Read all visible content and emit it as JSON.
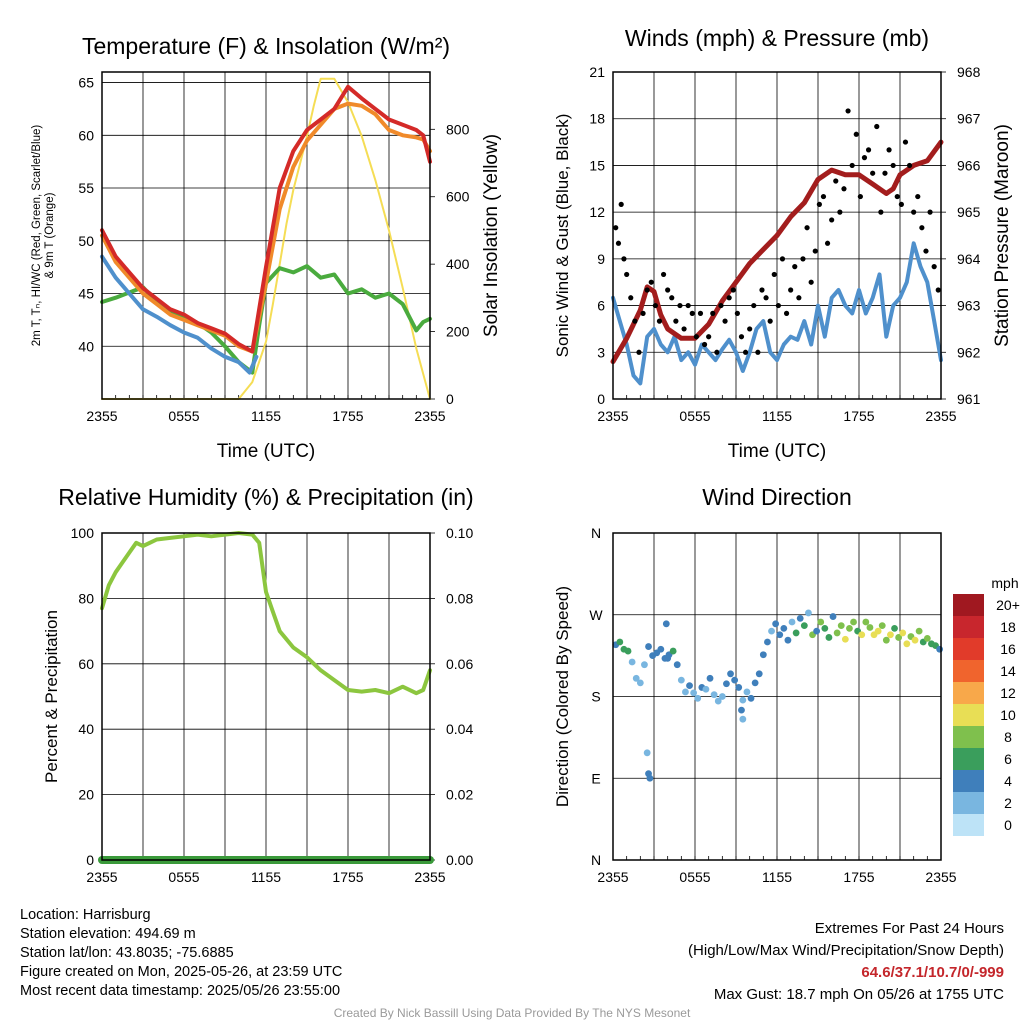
{
  "chart_data": [
    {
      "id": "temp",
      "type": "line",
      "title": "Temperature (F) & Insolation (W/m²)",
      "xlabel": "Time (UTC)",
      "ylabel_lines": [
        "2m T, Tₙ, HI/WC (Red, Green, Scarlet/Blue)",
        "& 9m T (Orange)"
      ],
      "y2label": "Solar Insolation (Yellow)",
      "x_ticks": [
        "2355",
        "0555",
        "1155",
        "1755",
        "2355"
      ],
      "ylim": [
        35,
        66
      ],
      "y_ticks": [
        40,
        45,
        50,
        55,
        60,
        65
      ],
      "y2lim": [
        0,
        970
      ],
      "y2_ticks": [
        0,
        200,
        400,
        600,
        800
      ],
      "grid": true,
      "series": [
        {
          "key": "insolation",
          "axis": "right",
          "color": "#f5dd55",
          "x": [
            0,
            0.5,
            1,
            2,
            3,
            4,
            5,
            6,
            7,
            8,
            9,
            10,
            11,
            12,
            12.5,
            13,
            13.5,
            14,
            14.5,
            15,
            15.5,
            16,
            17,
            18,
            19,
            20,
            21,
            22,
            23,
            24
          ],
          "y": [
            0,
            0,
            0,
            0,
            0,
            0,
            0,
            0,
            0,
            0,
            0,
            0,
            50,
            170,
            280,
            400,
            520,
            620,
            700,
            780,
            870,
            950,
            950,
            880,
            780,
            650,
            500,
            330,
            150,
            0
          ]
        },
        {
          "key": "dewpoint",
          "color": "#4aab3e",
          "x": [
            0,
            1,
            2,
            3,
            4,
            5,
            6,
            7,
            8,
            9,
            10,
            11,
            11.5,
            12,
            13,
            14,
            15,
            16,
            17,
            18,
            19,
            20,
            21,
            22,
            23,
            23.5,
            24
          ],
          "y": [
            44.2,
            44.6,
            45.1,
            45.6,
            44.2,
            43.3,
            42.8,
            42.2,
            41.3,
            40.0,
            38.5,
            37.5,
            42.0,
            46.0,
            47.4,
            47.0,
            47.6,
            46.5,
            46.8,
            45.0,
            45.4,
            44.6,
            45.0,
            44.0,
            41.5,
            42.3,
            42.6
          ]
        },
        {
          "key": "heat_index_wc",
          "color": "#4f90cc",
          "x": [
            0,
            1,
            2,
            3,
            4,
            5,
            6,
            7,
            8,
            9,
            10,
            10.8,
            11.3
          ],
          "y": [
            48.5,
            46.5,
            45.0,
            43.5,
            42.8,
            42.0,
            41.3,
            40.8,
            39.8,
            39.0,
            38.5,
            37.5,
            39.0
          ]
        },
        {
          "key": "temp_9m",
          "color": "#f08a2a",
          "x": [
            0,
            1,
            2,
            3,
            4,
            5,
            6,
            7,
            8,
            9,
            10,
            11,
            12,
            13,
            14,
            15,
            16,
            17,
            18,
            19,
            20,
            21,
            22,
            23,
            23.5,
            24
          ],
          "y": [
            50.5,
            48.0,
            46.5,
            45.0,
            44.0,
            43.0,
            42.5,
            42.0,
            41.5,
            41.0,
            40.0,
            39.5,
            46.0,
            53.0,
            57.0,
            59.5,
            61.0,
            62.5,
            63.0,
            62.8,
            62.0,
            60.5,
            60.0,
            59.8,
            59.6,
            58.5
          ]
        },
        {
          "key": "temp_2m",
          "color": "#d42a28",
          "x": [
            0,
            1,
            2,
            3,
            4,
            5,
            6,
            7,
            8,
            9,
            10,
            11,
            12,
            13,
            14,
            15,
            16,
            17,
            18,
            19,
            20,
            21,
            22,
            23,
            23.5,
            24
          ],
          "y": [
            51.0,
            48.5,
            47.0,
            45.5,
            44.5,
            43.5,
            43.0,
            42.2,
            41.7,
            41.2,
            40.2,
            39.5,
            47.5,
            55.0,
            58.5,
            60.5,
            61.5,
            62.5,
            64.6,
            63.5,
            62.5,
            61.5,
            61.0,
            60.5,
            60.0,
            57.5
          ]
        }
      ]
    },
    {
      "id": "winds",
      "type": "line",
      "title": "Winds (mph) & Pressure (mb)",
      "xlabel": "Time (UTC)",
      "ylabel": "Sonic Wind & Gust (Blue, Black)",
      "y2label": "Station Pressure (Maroon)",
      "x_ticks": [
        "2355",
        "0555",
        "1155",
        "1755",
        "2355"
      ],
      "ylim": [
        0,
        21
      ],
      "y_ticks": [
        0,
        3,
        6,
        9,
        12,
        15,
        18,
        21
      ],
      "y2lim": [
        961,
        968
      ],
      "y2_ticks": [
        961,
        962,
        963,
        964,
        965,
        966,
        967,
        968
      ],
      "grid": true,
      "series": [
        {
          "key": "wind",
          "color": "#4f90cc",
          "x": [
            0,
            0.5,
            1,
            1.5,
            2,
            2.5,
            3,
            3.5,
            4,
            4.5,
            5,
            5.5,
            6,
            6.5,
            7,
            7.5,
            8,
            8.5,
            9,
            9.5,
            10,
            10.5,
            11,
            11.5,
            12,
            12.5,
            13,
            13.5,
            14,
            14.5,
            15,
            15.5,
            16,
            16.5,
            17,
            17.5,
            18,
            18.5,
            19,
            19.5,
            20,
            20.5,
            21,
            21.5,
            22,
            22.5,
            23,
            23.5,
            24
          ],
          "y": [
            6.5,
            5.0,
            3.5,
            1.5,
            1.0,
            4.0,
            4.5,
            3.5,
            3.0,
            4.0,
            2.5,
            3.0,
            2.2,
            3.5,
            3.0,
            2.5,
            3.2,
            3.8,
            3.0,
            1.8,
            3.0,
            4.5,
            5.0,
            3.0,
            2.5,
            3.5,
            4.0,
            3.8,
            5.0,
            3.5,
            6.0,
            4.0,
            6.5,
            7.0,
            6.0,
            5.5,
            7.0,
            5.5,
            6.5,
            8.0,
            4.0,
            6.0,
            6.5,
            7.5,
            10.0,
            8.5,
            7.5,
            5.0,
            2.5
          ]
        },
        {
          "key": "pressure",
          "axis": "right",
          "color": "#a31d1d",
          "x": [
            0,
            1,
            2,
            2.5,
            3,
            3.5,
            4,
            5,
            6,
            7,
            8,
            9,
            10,
            11,
            12,
            13,
            14,
            15,
            16,
            17,
            18,
            19,
            20,
            20.5,
            21,
            22,
            23,
            24
          ],
          "y": [
            961.8,
            962.3,
            962.9,
            963.4,
            963.3,
            962.8,
            962.5,
            962.3,
            962.3,
            962.6,
            963.1,
            963.5,
            963.9,
            964.2,
            964.5,
            964.9,
            965.2,
            965.7,
            965.9,
            965.8,
            965.8,
            965.6,
            965.4,
            965.5,
            965.8,
            966.0,
            966.1,
            966.5
          ]
        }
      ],
      "gusts": {
        "color": "#000000",
        "x": [
          0.2,
          0.4,
          0.6,
          0.8,
          1.0,
          1.3,
          1.6,
          1.9,
          2.2,
          2.5,
          2.8,
          3.1,
          3.4,
          3.7,
          4.0,
          4.3,
          4.6,
          4.9,
          5.2,
          5.5,
          5.8,
          6.1,
          6.4,
          6.7,
          7.0,
          7.3,
          7.6,
          7.9,
          8.2,
          8.5,
          8.8,
          9.1,
          9.4,
          9.7,
          10.0,
          10.3,
          10.6,
          10.9,
          11.2,
          11.5,
          11.8,
          12.1,
          12.4,
          12.7,
          13.0,
          13.3,
          13.6,
          13.9,
          14.2,
          14.5,
          14.8,
          15.1,
          15.4,
          15.7,
          16.0,
          16.3,
          16.6,
          16.9,
          17.2,
          17.5,
          17.8,
          18.1,
          18.4,
          18.7,
          19.0,
          19.3,
          19.6,
          19.9,
          20.2,
          20.5,
          20.8,
          21.1,
          21.4,
          21.7,
          22.0,
          22.3,
          22.6,
          22.9,
          23.2,
          23.5,
          23.8
        ],
        "y": [
          11.0,
          10.0,
          12.5,
          9.0,
          8.0,
          6.5,
          5.0,
          3.0,
          5.5,
          7.0,
          7.5,
          6.0,
          5.0,
          8.0,
          7.0,
          6.5,
          5.0,
          6.0,
          4.5,
          6.0,
          5.5,
          4.0,
          5.5,
          3.5,
          4.0,
          5.5,
          3.0,
          6.0,
          5.0,
          6.5,
          7.0,
          5.5,
          4.0,
          3.0,
          4.5,
          6.0,
          3.0,
          7.0,
          6.5,
          5.0,
          8.0,
          6.0,
          9.0,
          5.5,
          7.0,
          8.5,
          6.5,
          9.0,
          11.0,
          7.5,
          9.5,
          12.5,
          13.0,
          10.0,
          11.5,
          14.0,
          12.0,
          13.5,
          18.5,
          15.0,
          17.0,
          13.0,
          15.5,
          16.0,
          14.5,
          17.5,
          12.0,
          14.5,
          16.0,
          15.0,
          13.0,
          12.5,
          16.5,
          15.0,
          12.0,
          13.0,
          11.0,
          9.5,
          12.0,
          8.5,
          7.0
        ]
      }
    },
    {
      "id": "rh",
      "type": "line",
      "title": "Relative Humidity (%) & Precipitation (in)",
      "xlabel": "",
      "ylabel": "Percent & Precipitation",
      "x_ticks": [
        "2355",
        "0555",
        "1155",
        "1755",
        "2355"
      ],
      "ylim": [
        0,
        100
      ],
      "y_ticks": [
        0,
        20,
        40,
        60,
        80,
        100
      ],
      "y2lim": [
        0,
        0.1
      ],
      "y2_ticks": [
        "0.00",
        "0.02",
        "0.04",
        "0.06",
        "0.08",
        "0.10"
      ],
      "grid": true,
      "series": [
        {
          "key": "precip",
          "axis": "right",
          "color": "#3a9a3a",
          "x": [
            0,
            24
          ],
          "y": [
            0,
            0
          ]
        },
        {
          "key": "rh",
          "color": "#8cc63f",
          "x": [
            0,
            0.5,
            1,
            1.5,
            2,
            2.5,
            3,
            3.5,
            4,
            5,
            6,
            7,
            8,
            9,
            10,
            11,
            11.5,
            12,
            12.5,
            13,
            14,
            15,
            16,
            17,
            18,
            19,
            20,
            21,
            22,
            23,
            23.5,
            24
          ],
          "y": [
            77,
            84,
            88,
            91,
            94,
            97,
            96,
            97,
            98,
            98.5,
            99,
            99.5,
            99,
            99.5,
            100,
            99.5,
            97,
            82,
            76,
            70,
            65,
            62,
            58,
            55,
            52,
            51.5,
            52,
            51,
            53,
            51,
            52,
            58
          ]
        }
      ]
    },
    {
      "id": "wdir",
      "type": "scatter",
      "title": "Wind Direction",
      "xlabel": "",
      "ylabel": "Direction (Colored By Speed)",
      "x_ticks": [
        "2355",
        "0555",
        "1155",
        "1755",
        "2355"
      ],
      "y_ticks": [
        "N",
        "E",
        "S",
        "W",
        "N"
      ],
      "ylim": [
        0,
        360
      ],
      "grid": true,
      "legend": {
        "title": "mph",
        "labels": [
          "20+",
          "18",
          "16",
          "14",
          "12",
          "10",
          "8",
          "6",
          "4",
          "2",
          "0"
        ],
        "colors": [
          "#a01820",
          "#c8262d",
          "#e13b2a",
          "#f0642d",
          "#f8a84a",
          "#e8de55",
          "#7fc04d",
          "#3a9e5c",
          "#3f7fbb",
          "#79b6e0",
          "#bde3f7"
        ]
      },
      "points": {
        "x": [
          0.2,
          0.5,
          0.8,
          1.1,
          1.4,
          1.7,
          2.0,
          2.3,
          2.6,
          2.9,
          3.2,
          3.5,
          3.8,
          4.1,
          4.4,
          4.7,
          5.0,
          5.3,
          5.6,
          5.9,
          6.2,
          6.5,
          6.8,
          7.1,
          7.4,
          7.7,
          8.0,
          8.3,
          8.6,
          8.9,
          9.2,
          9.5,
          9.8,
          10.1,
          10.4,
          10.7,
          11.0,
          11.3,
          11.6,
          11.9,
          12.2,
          12.5,
          12.8,
          13.1,
          13.4,
          13.7,
          14.0,
          14.3,
          14.6,
          14.9,
          15.2,
          15.5,
          15.8,
          16.1,
          16.4,
          16.7,
          17.0,
          17.3,
          17.6,
          17.9,
          18.2,
          18.5,
          18.8,
          19.1,
          19.4,
          19.7,
          20.0,
          20.3,
          20.6,
          20.9,
          21.2,
          21.5,
          21.8,
          22.1,
          22.4,
          22.7,
          23.0,
          23.3,
          23.6,
          23.9,
          2.5,
          2.6,
          2.7,
          3.9,
          4.0,
          9.5,
          9.4
        ],
        "y": [
          237,
          240,
          232,
          230,
          218,
          200,
          195,
          215,
          235,
          225,
          228,
          232,
          222,
          226,
          230,
          215,
          198,
          185,
          192,
          184,
          178,
          190,
          188,
          200,
          182,
          175,
          180,
          194,
          205,
          198,
          190,
          176,
          185,
          178,
          195,
          205,
          226,
          240,
          252,
          260,
          248,
          255,
          242,
          262,
          250,
          266,
          258,
          272,
          248,
          252,
          262,
          255,
          245,
          268,
          250,
          258,
          243,
          255,
          262,
          252,
          248,
          262,
          256,
          248,
          252,
          258,
          242,
          248,
          255,
          245,
          250,
          238,
          246,
          242,
          252,
          240,
          244,
          238,
          236,
          232,
          118,
          95,
          90,
          260,
          222,
          155,
          165
        ],
        "speed": [
          4,
          5,
          5,
          6,
          2,
          1,
          1,
          2,
          4,
          3,
          4,
          4,
          3,
          4,
          5,
          3,
          2,
          2,
          3,
          2,
          2,
          3,
          2,
          3,
          2,
          2,
          1,
          3,
          4,
          3,
          3,
          2,
          2,
          3,
          4,
          4,
          3,
          4,
          2,
          4,
          3,
          3,
          4,
          2,
          5,
          3,
          6,
          2,
          7,
          4,
          8,
          5,
          6,
          3,
          7,
          8,
          9,
          7,
          8,
          6,
          10,
          7,
          8,
          9,
          10,
          7,
          8,
          9,
          6,
          7,
          10,
          9,
          8,
          9,
          7,
          6,
          8,
          6,
          5,
          4,
          1,
          3,
          3,
          4,
          3,
          2,
          3
        ]
      }
    }
  ],
  "station": {
    "location": "Location: Harrisburg",
    "elevation": "Station elevation: 494.69 m",
    "latlon": "Station lat/lon: 43.8035; -75.6885",
    "created": "Figure created on Mon, 2025-05-26, at 23:59 UTC",
    "recent": "Most recent data timestamp: 2025/05/26 23:55:00"
  },
  "extremes": {
    "title": "Extremes For Past 24 Hours",
    "subtitle": "(High/Low/Max Wind/Precipitation/Snow Depth)",
    "values": "64.6/37.1/10.7/0/-999",
    "max_gust": "Max Gust: 18.7 mph On 05/26 at 1755 UTC"
  },
  "credit": "Created By Nick Bassill Using Data Provided By The NYS Mesonet"
}
